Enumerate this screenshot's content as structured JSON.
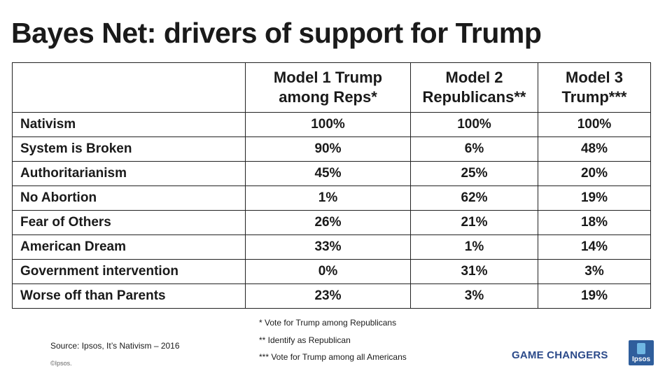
{
  "slide": {
    "title": "Bayes Net: drivers of support for Trump"
  },
  "table": {
    "header": {
      "corner": "",
      "columns": [
        {
          "line1": "Model 1 Trump",
          "line2": "among Reps*"
        },
        {
          "line1": "Model 2",
          "line2": "Republicans**"
        },
        {
          "line1": "Model 3",
          "line2": "Trump***"
        }
      ]
    },
    "rows": [
      {
        "label": "Nativism",
        "values": [
          "100%",
          "100%",
          "100%"
        ]
      },
      {
        "label": "System is Broken",
        "values": [
          "90%",
          "6%",
          "48%"
        ]
      },
      {
        "label": "Authoritarianism",
        "values": [
          "45%",
          "25%",
          "20%"
        ]
      },
      {
        "label": "No Abortion",
        "values": [
          "1%",
          "62%",
          "19%"
        ]
      },
      {
        "label": "Fear of Others",
        "values": [
          "26%",
          "21%",
          "18%"
        ]
      },
      {
        "label": "American Dream",
        "values": [
          "33%",
          "1%",
          "14%"
        ]
      },
      {
        "label": "Government intervention",
        "values": [
          "0%",
          "31%",
          "3%"
        ]
      },
      {
        "label": "Worse off than Parents",
        "values": [
          "23%",
          "3%",
          "19%"
        ]
      }
    ]
  },
  "footnotes": [
    "* Vote for Trump among Republicans",
    "** Identify as Republican",
    "*** Vote for Trump among all Americans"
  ],
  "footer": {
    "source": "Source: Ipsos, It’s Nativism – 2016",
    "copyright": "©Ipsos.",
    "tagline": "GAME CHANGERS",
    "logo_text": "Ipsos"
  },
  "colors": {
    "tagline": "#2b4a8a",
    "logo_bg": "#2f5e9c",
    "logo_mark": "#6fb7e3"
  }
}
